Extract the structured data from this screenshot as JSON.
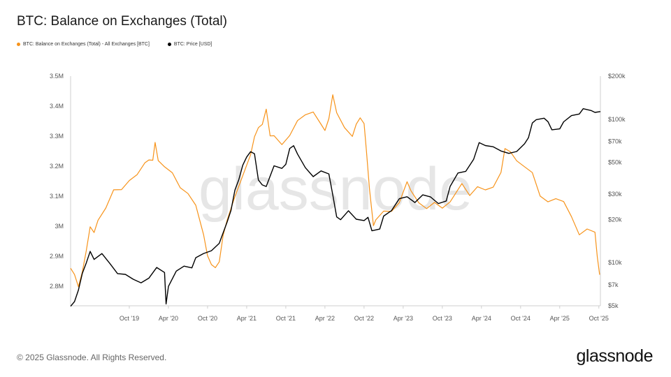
{
  "header": {
    "title": "BTC: Balance on Exchanges (Total)"
  },
  "legend": [
    {
      "label": "BTC: Balance on Exchanges (Total) - All Exchanges [BTC]",
      "color": "#f7931a"
    },
    {
      "label": "BTC: Price [USD]",
      "color": "#000000"
    }
  ],
  "footer": {
    "copyright": "© 2025 Glassnode. All Rights Reserved.",
    "logo": "glassnode",
    "watermark": "glassnode"
  },
  "chart_data": {
    "type": "line",
    "x_ticks": [
      "Oct '19",
      "Apr '20",
      "Oct '20",
      "Apr '21",
      "Oct '21",
      "Apr '22",
      "Oct '22",
      "Apr '23",
      "Oct '23",
      "Apr '24",
      "Oct '24",
      "Apr '25",
      "Oct '25"
    ],
    "x_tick_pos": [
      2019.75,
      2020.25,
      2020.75,
      2021.25,
      2021.75,
      2022.25,
      2022.75,
      2023.25,
      2023.75,
      2024.25,
      2024.75,
      2025.25,
      2025.75
    ],
    "xlim": [
      2019.0,
      2025.77
    ],
    "y_left": {
      "ticks": [
        "3.5M",
        "3.4M",
        "3.3M",
        "3.2M",
        "3.1M",
        "3M",
        "2.9M",
        "2.8M"
      ],
      "tick_values": [
        3.5,
        3.4,
        3.3,
        3.2,
        3.1,
        3.0,
        2.9,
        2.8
      ],
      "ylim": [
        2.735,
        3.5
      ]
    },
    "y_right": {
      "ticks": [
        "$200k",
        "$100k",
        "$70k",
        "$50k",
        "$30k",
        "$20k",
        "$10k",
        "$7k",
        "$5k"
      ],
      "tick_values": [
        200000,
        100000,
        70000,
        50000,
        30000,
        20000,
        10000,
        7000,
        5000
      ],
      "scale": "log",
      "ylim": [
        5000,
        200000
      ]
    },
    "grid": false,
    "legend_position": "top-left",
    "series": [
      {
        "name": "BTC: Balance on Exchanges (Total) - All Exchanges [BTC]",
        "axis": "left",
        "color": "#f7931a",
        "points": [
          [
            2019.0,
            2.86
          ],
          [
            2019.05,
            2.84
          ],
          [
            2019.1,
            2.8
          ],
          [
            2019.15,
            2.85
          ],
          [
            2019.2,
            2.92
          ],
          [
            2019.25,
            3.0
          ],
          [
            2019.3,
            2.98
          ],
          [
            2019.35,
            3.02
          ],
          [
            2019.45,
            3.06
          ],
          [
            2019.55,
            3.12
          ],
          [
            2019.65,
            3.12
          ],
          [
            2019.75,
            3.15
          ],
          [
            2019.85,
            3.17
          ],
          [
            2019.95,
            3.21
          ],
          [
            2020.0,
            3.22
          ],
          [
            2020.05,
            3.22
          ],
          [
            2020.08,
            3.28
          ],
          [
            2020.12,
            3.22
          ],
          [
            2020.2,
            3.2
          ],
          [
            2020.3,
            3.18
          ],
          [
            2020.4,
            3.13
          ],
          [
            2020.5,
            3.11
          ],
          [
            2020.6,
            3.07
          ],
          [
            2020.65,
            3.02
          ],
          [
            2020.7,
            2.97
          ],
          [
            2020.75,
            2.9
          ],
          [
            2020.8,
            2.87
          ],
          [
            2020.85,
            2.86
          ],
          [
            2020.9,
            2.88
          ],
          [
            2020.95,
            2.97
          ],
          [
            2021.0,
            3.02
          ],
          [
            2021.1,
            3.1
          ],
          [
            2021.2,
            3.17
          ],
          [
            2021.3,
            3.24
          ],
          [
            2021.35,
            3.3
          ],
          [
            2021.4,
            3.33
          ],
          [
            2021.45,
            3.34
          ],
          [
            2021.5,
            3.39
          ],
          [
            2021.55,
            3.3
          ],
          [
            2021.6,
            3.3
          ],
          [
            2021.7,
            3.27
          ],
          [
            2021.8,
            3.3
          ],
          [
            2021.9,
            3.35
          ],
          [
            2022.0,
            3.37
          ],
          [
            2022.1,
            3.38
          ],
          [
            2022.2,
            3.34
          ],
          [
            2022.25,
            3.32
          ],
          [
            2022.3,
            3.36
          ],
          [
            2022.35,
            3.44
          ],
          [
            2022.4,
            3.38
          ],
          [
            2022.5,
            3.33
          ],
          [
            2022.6,
            3.3
          ],
          [
            2022.65,
            3.34
          ],
          [
            2022.7,
            3.36
          ],
          [
            2022.75,
            3.34
          ],
          [
            2022.78,
            3.25
          ],
          [
            2022.82,
            3.12
          ],
          [
            2022.87,
            3.0
          ],
          [
            2022.9,
            3.02
          ],
          [
            2023.0,
            3.05
          ],
          [
            2023.1,
            3.05
          ],
          [
            2023.2,
            3.08
          ],
          [
            2023.3,
            3.15
          ],
          [
            2023.35,
            3.12
          ],
          [
            2023.45,
            3.08
          ],
          [
            2023.55,
            3.06
          ],
          [
            2023.65,
            3.08
          ],
          [
            2023.75,
            3.06
          ],
          [
            2023.85,
            3.08
          ],
          [
            2023.95,
            3.12
          ],
          [
            2024.0,
            3.14
          ],
          [
            2024.1,
            3.1
          ],
          [
            2024.2,
            3.13
          ],
          [
            2024.3,
            3.12
          ],
          [
            2024.4,
            3.13
          ],
          [
            2024.5,
            3.18
          ],
          [
            2024.55,
            3.26
          ],
          [
            2024.62,
            3.25
          ],
          [
            2024.7,
            3.22
          ],
          [
            2024.8,
            3.2
          ],
          [
            2024.9,
            3.18
          ],
          [
            2024.95,
            3.14
          ],
          [
            2025.0,
            3.1
          ],
          [
            2025.1,
            3.08
          ],
          [
            2025.2,
            3.09
          ],
          [
            2025.3,
            3.08
          ],
          [
            2025.4,
            3.03
          ],
          [
            2025.5,
            2.97
          ],
          [
            2025.6,
            2.99
          ],
          [
            2025.7,
            2.98
          ],
          [
            2025.73,
            2.9
          ],
          [
            2025.76,
            2.84
          ]
        ]
      },
      {
        "name": "BTC: Price [USD]",
        "axis": "right",
        "color": "#000000",
        "points": [
          [
            2019.0,
            5000
          ],
          [
            2019.05,
            5400
          ],
          [
            2019.1,
            6500
          ],
          [
            2019.15,
            8500
          ],
          [
            2019.2,
            10000
          ],
          [
            2019.25,
            12000
          ],
          [
            2019.3,
            10500
          ],
          [
            2019.4,
            11500
          ],
          [
            2019.5,
            9800
          ],
          [
            2019.6,
            8300
          ],
          [
            2019.7,
            8200
          ],
          [
            2019.8,
            7600
          ],
          [
            2019.9,
            7200
          ],
          [
            2020.0,
            7800
          ],
          [
            2020.1,
            9300
          ],
          [
            2020.2,
            8600
          ],
          [
            2020.22,
            5200
          ],
          [
            2020.25,
            6900
          ],
          [
            2020.35,
            8800
          ],
          [
            2020.45,
            9500
          ],
          [
            2020.55,
            9200
          ],
          [
            2020.6,
            10800
          ],
          [
            2020.7,
            11500
          ],
          [
            2020.8,
            12000
          ],
          [
            2020.9,
            13500
          ],
          [
            2021.0,
            19000
          ],
          [
            2021.05,
            23000
          ],
          [
            2021.1,
            32000
          ],
          [
            2021.15,
            38000
          ],
          [
            2021.2,
            48000
          ],
          [
            2021.25,
            55000
          ],
          [
            2021.3,
            60000
          ],
          [
            2021.35,
            58000
          ],
          [
            2021.4,
            38000
          ],
          [
            2021.45,
            35000
          ],
          [
            2021.5,
            34000
          ],
          [
            2021.55,
            40000
          ],
          [
            2021.6,
            47000
          ],
          [
            2021.7,
            45000
          ],
          [
            2021.75,
            48000
          ],
          [
            2021.8,
            62000
          ],
          [
            2021.85,
            65000
          ],
          [
            2021.9,
            57000
          ],
          [
            2022.0,
            46000
          ],
          [
            2022.1,
            40000
          ],
          [
            2022.2,
            44000
          ],
          [
            2022.3,
            42000
          ],
          [
            2022.35,
            30000
          ],
          [
            2022.4,
            21000
          ],
          [
            2022.45,
            20000
          ],
          [
            2022.55,
            23000
          ],
          [
            2022.65,
            20000
          ],
          [
            2022.75,
            19500
          ],
          [
            2022.8,
            20500
          ],
          [
            2022.85,
            16500
          ],
          [
            2022.95,
            17000
          ],
          [
            2023.0,
            21000
          ],
          [
            2023.1,
            23000
          ],
          [
            2023.2,
            28000
          ],
          [
            2023.3,
            29000
          ],
          [
            2023.4,
            26500
          ],
          [
            2023.5,
            30000
          ],
          [
            2023.6,
            29000
          ],
          [
            2023.7,
            26000
          ],
          [
            2023.8,
            27000
          ],
          [
            2023.85,
            34000
          ],
          [
            2023.95,
            42000
          ],
          [
            2024.05,
            43000
          ],
          [
            2024.15,
            52000
          ],
          [
            2024.22,
            68000
          ],
          [
            2024.3,
            65000
          ],
          [
            2024.4,
            64000
          ],
          [
            2024.5,
            60000
          ],
          [
            2024.6,
            58000
          ],
          [
            2024.7,
            60000
          ],
          [
            2024.8,
            68000
          ],
          [
            2024.85,
            75000
          ],
          [
            2024.9,
            95000
          ],
          [
            2024.95,
            100000
          ],
          [
            2025.05,
            102000
          ],
          [
            2025.1,
            96000
          ],
          [
            2025.15,
            84000
          ],
          [
            2025.25,
            85000
          ],
          [
            2025.3,
            95000
          ],
          [
            2025.4,
            105000
          ],
          [
            2025.5,
            108000
          ],
          [
            2025.55,
            118000
          ],
          [
            2025.65,
            115000
          ],
          [
            2025.7,
            112000
          ],
          [
            2025.77,
            114000
          ]
        ]
      }
    ]
  }
}
